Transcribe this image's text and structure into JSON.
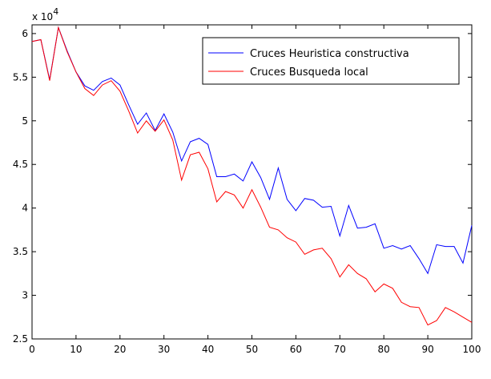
{
  "chart_data": {
    "type": "line",
    "exponent_label": {
      "base": "x 10",
      "power": "4"
    },
    "xlim": [
      0,
      100
    ],
    "ylim": [
      25000,
      61000
    ],
    "x_ticks": [
      "0",
      "10",
      "20",
      "30",
      "40",
      "50",
      "60",
      "70",
      "80",
      "90",
      "100"
    ],
    "y_ticks": [
      "2.5",
      "3",
      "3.5",
      "4",
      "4.5",
      "5",
      "5.5",
      "6"
    ],
    "grid": false,
    "legend_position": "top-right",
    "x": [
      0,
      2,
      4,
      6,
      8,
      10,
      12,
      14,
      16,
      18,
      20,
      22,
      24,
      26,
      28,
      30,
      32,
      34,
      36,
      38,
      40,
      42,
      44,
      46,
      48,
      50,
      52,
      54,
      56,
      58,
      60,
      62,
      64,
      66,
      68,
      70,
      72,
      74,
      76,
      78,
      80,
      82,
      84,
      86,
      88,
      90,
      92,
      94,
      96,
      98,
      100
    ],
    "series": [
      {
        "name": "Cruces Heuristica constructiva",
        "color": "#0000ff",
        "values": [
          59100,
          59300,
          54700,
          60700,
          58000,
          55600,
          54000,
          53500,
          54500,
          54900,
          54100,
          51800,
          49600,
          50900,
          48900,
          50800,
          48700,
          45400,
          47600,
          48000,
          47300,
          43600,
          43600,
          43900,
          43100,
          45300,
          43500,
          41000,
          44600,
          41000,
          39700,
          41100,
          40900,
          40100,
          40200,
          36800,
          40300,
          37700,
          37800,
          38200,
          35400,
          35700,
          35300,
          35700,
          34200,
          32500,
          35800,
          35600,
          35600,
          33700,
          38000
        ]
      },
      {
        "name": "Cruces Busqueda local",
        "color": "#ff0000",
        "values": [
          59100,
          59300,
          54600,
          60700,
          57900,
          55600,
          53700,
          52900,
          54100,
          54600,
          53400,
          51100,
          48600,
          50000,
          48800,
          50100,
          47800,
          43200,
          46100,
          46400,
          44500,
          40700,
          41900,
          41500,
          40000,
          42100,
          40100,
          37800,
          37500,
          36600,
          36100,
          34700,
          35200,
          35400,
          34200,
          32100,
          33500,
          32500,
          31900,
          30400,
          31300,
          30800,
          29200,
          28700,
          28600,
          26600,
          27100,
          28600,
          28100,
          27500,
          26900
        ]
      }
    ]
  }
}
